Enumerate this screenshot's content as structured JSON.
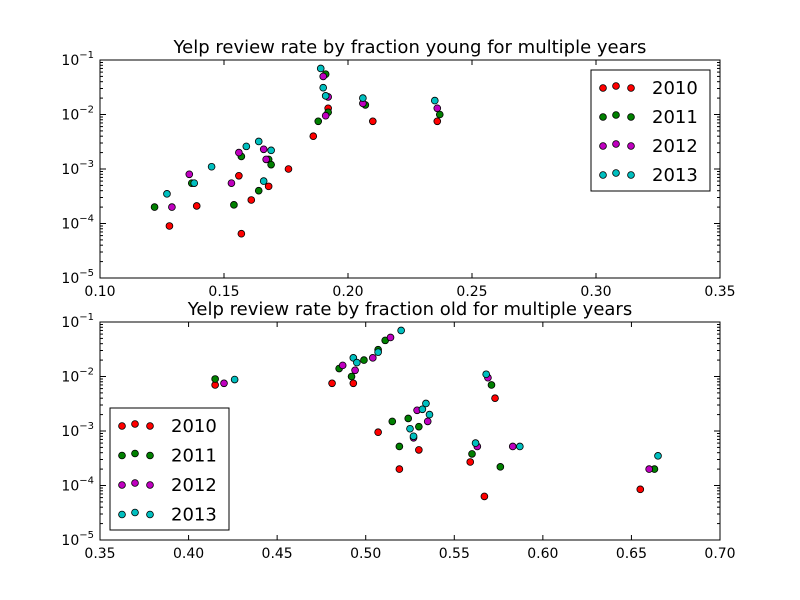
{
  "chart_data": [
    {
      "type": "scatter",
      "title": "Yelp review rate by fraction young for multiple years",
      "xlabel": "",
      "ylabel": "",
      "xlim": [
        0.1,
        0.35
      ],
      "ylim_exponents": [
        -5,
        -1
      ],
      "yscale": "log",
      "xticks": [
        "0.10",
        "0.15",
        "0.20",
        "0.25",
        "0.30",
        "0.35"
      ],
      "grid": false,
      "legend_position": "upper right",
      "series": [
        {
          "name": "2010",
          "color": "#ff0000",
          "points": [
            [
              0.128,
              9e-05
            ],
            [
              0.139,
              0.00021
            ],
            [
              0.156,
              0.00075
            ],
            [
              0.157,
              6.5e-05
            ],
            [
              0.161,
              0.00027
            ],
            [
              0.168,
              0.00048
            ],
            [
              0.176,
              0.001
            ],
            [
              0.186,
              0.004
            ],
            [
              0.192,
              0.013
            ],
            [
              0.21,
              0.0075
            ],
            [
              0.236,
              0.0075
            ]
          ]
        },
        {
          "name": "2011",
          "color": "#008000",
          "points": [
            [
              0.122,
              0.0002
            ],
            [
              0.137,
              0.00055
            ],
            [
              0.154,
              0.00022
            ],
            [
              0.157,
              0.0017
            ],
            [
              0.164,
              0.0004
            ],
            [
              0.168,
              0.0015
            ],
            [
              0.169,
              0.0012
            ],
            [
              0.188,
              0.0075
            ],
            [
              0.191,
              0.055
            ],
            [
              0.192,
              0.011
            ],
            [
              0.207,
              0.015
            ],
            [
              0.237,
              0.01
            ]
          ]
        },
        {
          "name": "2012",
          "color": "#bf00bf",
          "points": [
            [
              0.129,
              0.0002
            ],
            [
              0.136,
              0.0008
            ],
            [
              0.153,
              0.00055
            ],
            [
              0.156,
              0.002
            ],
            [
              0.166,
              0.0023
            ],
            [
              0.167,
              0.0015
            ],
            [
              0.19,
              0.05
            ],
            [
              0.191,
              0.0095
            ],
            [
              0.192,
              0.021
            ],
            [
              0.206,
              0.016
            ],
            [
              0.236,
              0.013
            ]
          ]
        },
        {
          "name": "2013",
          "color": "#00bfbf",
          "points": [
            [
              0.127,
              0.00035
            ],
            [
              0.138,
              0.00055
            ],
            [
              0.145,
              0.0011
            ],
            [
              0.159,
              0.0026
            ],
            [
              0.164,
              0.0032
            ],
            [
              0.166,
              0.0006
            ],
            [
              0.169,
              0.0022
            ],
            [
              0.189,
              0.07
            ],
            [
              0.19,
              0.031
            ],
            [
              0.191,
              0.022
            ],
            [
              0.206,
              0.02
            ],
            [
              0.235,
              0.018
            ]
          ]
        }
      ]
    },
    {
      "type": "scatter",
      "title": "Yelp review rate by fraction old for multiple years",
      "xlabel": "",
      "ylabel": "",
      "xlim": [
        0.35,
        0.7
      ],
      "ylim_exponents": [
        -5,
        -1
      ],
      "yscale": "log",
      "xticks": [
        "0.35",
        "0.40",
        "0.45",
        "0.50",
        "0.55",
        "0.60",
        "0.65",
        "0.70"
      ],
      "grid": false,
      "legend_position": "lower left",
      "series": [
        {
          "name": "2010",
          "color": "#ff0000",
          "points": [
            [
              0.415,
              0.007
            ],
            [
              0.481,
              0.0075
            ],
            [
              0.493,
              0.0075
            ],
            [
              0.507,
              0.00095
            ],
            [
              0.519,
              0.0002
            ],
            [
              0.53,
              0.00045
            ],
            [
              0.559,
              0.00027
            ],
            [
              0.567,
              6.3e-05
            ],
            [
              0.573,
              0.004
            ],
            [
              0.655,
              8.5e-05
            ]
          ]
        },
        {
          "name": "2011",
          "color": "#008000",
          "points": [
            [
              0.415,
              0.009
            ],
            [
              0.485,
              0.014
            ],
            [
              0.492,
              0.01
            ],
            [
              0.499,
              0.02
            ],
            [
              0.507,
              0.031
            ],
            [
              0.511,
              0.046
            ],
            [
              0.515,
              0.0015
            ],
            [
              0.519,
              0.00052
            ],
            [
              0.524,
              0.0017
            ],
            [
              0.53,
              0.0012
            ],
            [
              0.56,
              0.00038
            ],
            [
              0.571,
              0.007
            ],
            [
              0.576,
              0.00022
            ],
            [
              0.663,
              0.0002
            ]
          ]
        },
        {
          "name": "2012",
          "color": "#bf00bf",
          "points": [
            [
              0.42,
              0.0075
            ],
            [
              0.487,
              0.016
            ],
            [
              0.494,
              0.013
            ],
            [
              0.504,
              0.022
            ],
            [
              0.514,
              0.052
            ],
            [
              0.527,
              0.00075
            ],
            [
              0.529,
              0.0024
            ],
            [
              0.535,
              0.0015
            ],
            [
              0.563,
              0.00052
            ],
            [
              0.569,
              0.0095
            ],
            [
              0.583,
              0.00052
            ],
            [
              0.66,
              0.0002
            ]
          ]
        },
        {
          "name": "2013",
          "color": "#00bfbf",
          "points": [
            [
              0.426,
              0.0088
            ],
            [
              0.493,
              0.022
            ],
            [
              0.495,
              0.018
            ],
            [
              0.507,
              0.028
            ],
            [
              0.52,
              0.07
            ],
            [
              0.525,
              0.0011
            ],
            [
              0.527,
              0.0008
            ],
            [
              0.532,
              0.0025
            ],
            [
              0.534,
              0.0032
            ],
            [
              0.536,
              0.002
            ],
            [
              0.562,
              0.0006
            ],
            [
              0.568,
              0.011
            ],
            [
              0.587,
              0.00052
            ],
            [
              0.665,
              0.00035
            ]
          ]
        }
      ]
    }
  ]
}
